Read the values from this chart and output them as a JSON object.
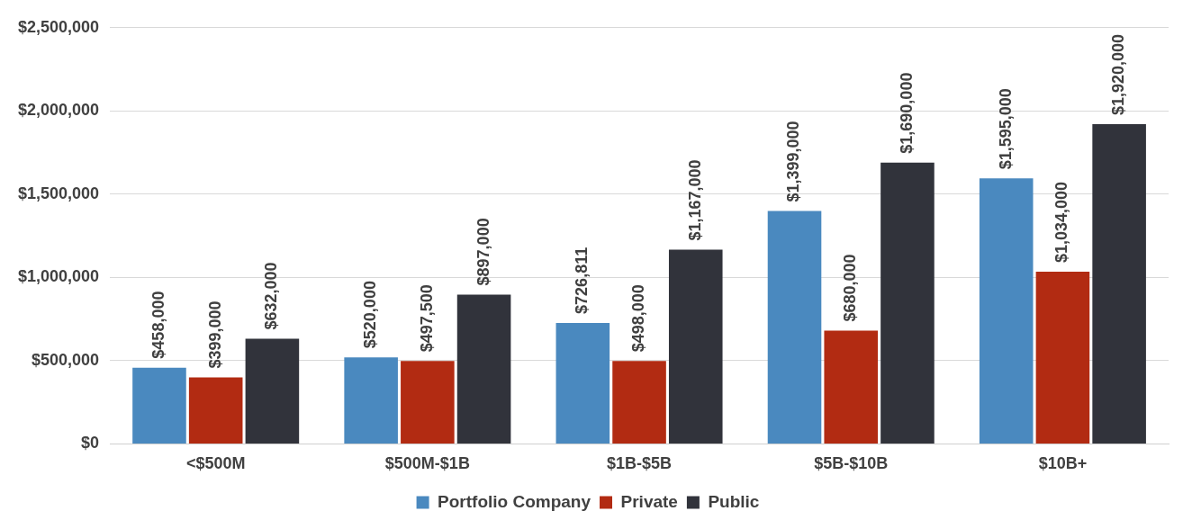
{
  "chart_data": {
    "type": "bar",
    "categories": [
      "<$500M",
      "$500M-$1B",
      "$1B-$5B",
      "$5B-$10B",
      "$10B+"
    ],
    "series": [
      {
        "name": "Portfolio Company",
        "color": "#4a89bf",
        "values": [
          458000,
          520000,
          726811,
          1399000,
          1595000
        ],
        "value_labels": [
          "$458,000",
          "$520,000",
          "$726,811",
          "$1,399,000",
          "$1,595,000"
        ]
      },
      {
        "name": "Private",
        "color": "#b22b12",
        "values": [
          399000,
          497500,
          498000,
          680000,
          1034000
        ],
        "value_labels": [
          "$399,000",
          "$497,500",
          "$498,000",
          "$680,000",
          "$1,034,000"
        ]
      },
      {
        "name": "Public",
        "color": "#31333b",
        "values": [
          632000,
          897000,
          1167000,
          1690000,
          1920000
        ],
        "value_labels": [
          "$632,000",
          "$897,000",
          "$1,167,000",
          "$1,690,000",
          "$1,920,000"
        ]
      }
    ],
    "ylim": [
      0,
      2500000
    ],
    "yticks": [
      {
        "value": 0,
        "label": "$0"
      },
      {
        "value": 500000,
        "label": "$500,000"
      },
      {
        "value": 1000000,
        "label": "$1,000,000"
      },
      {
        "value": 1500000,
        "label": "$1,500,000"
      },
      {
        "value": 2000000,
        "label": "$2,000,000"
      },
      {
        "value": 2500000,
        "label": "$2,500,000"
      }
    ],
    "grid": "y",
    "legend": "bottom"
  }
}
